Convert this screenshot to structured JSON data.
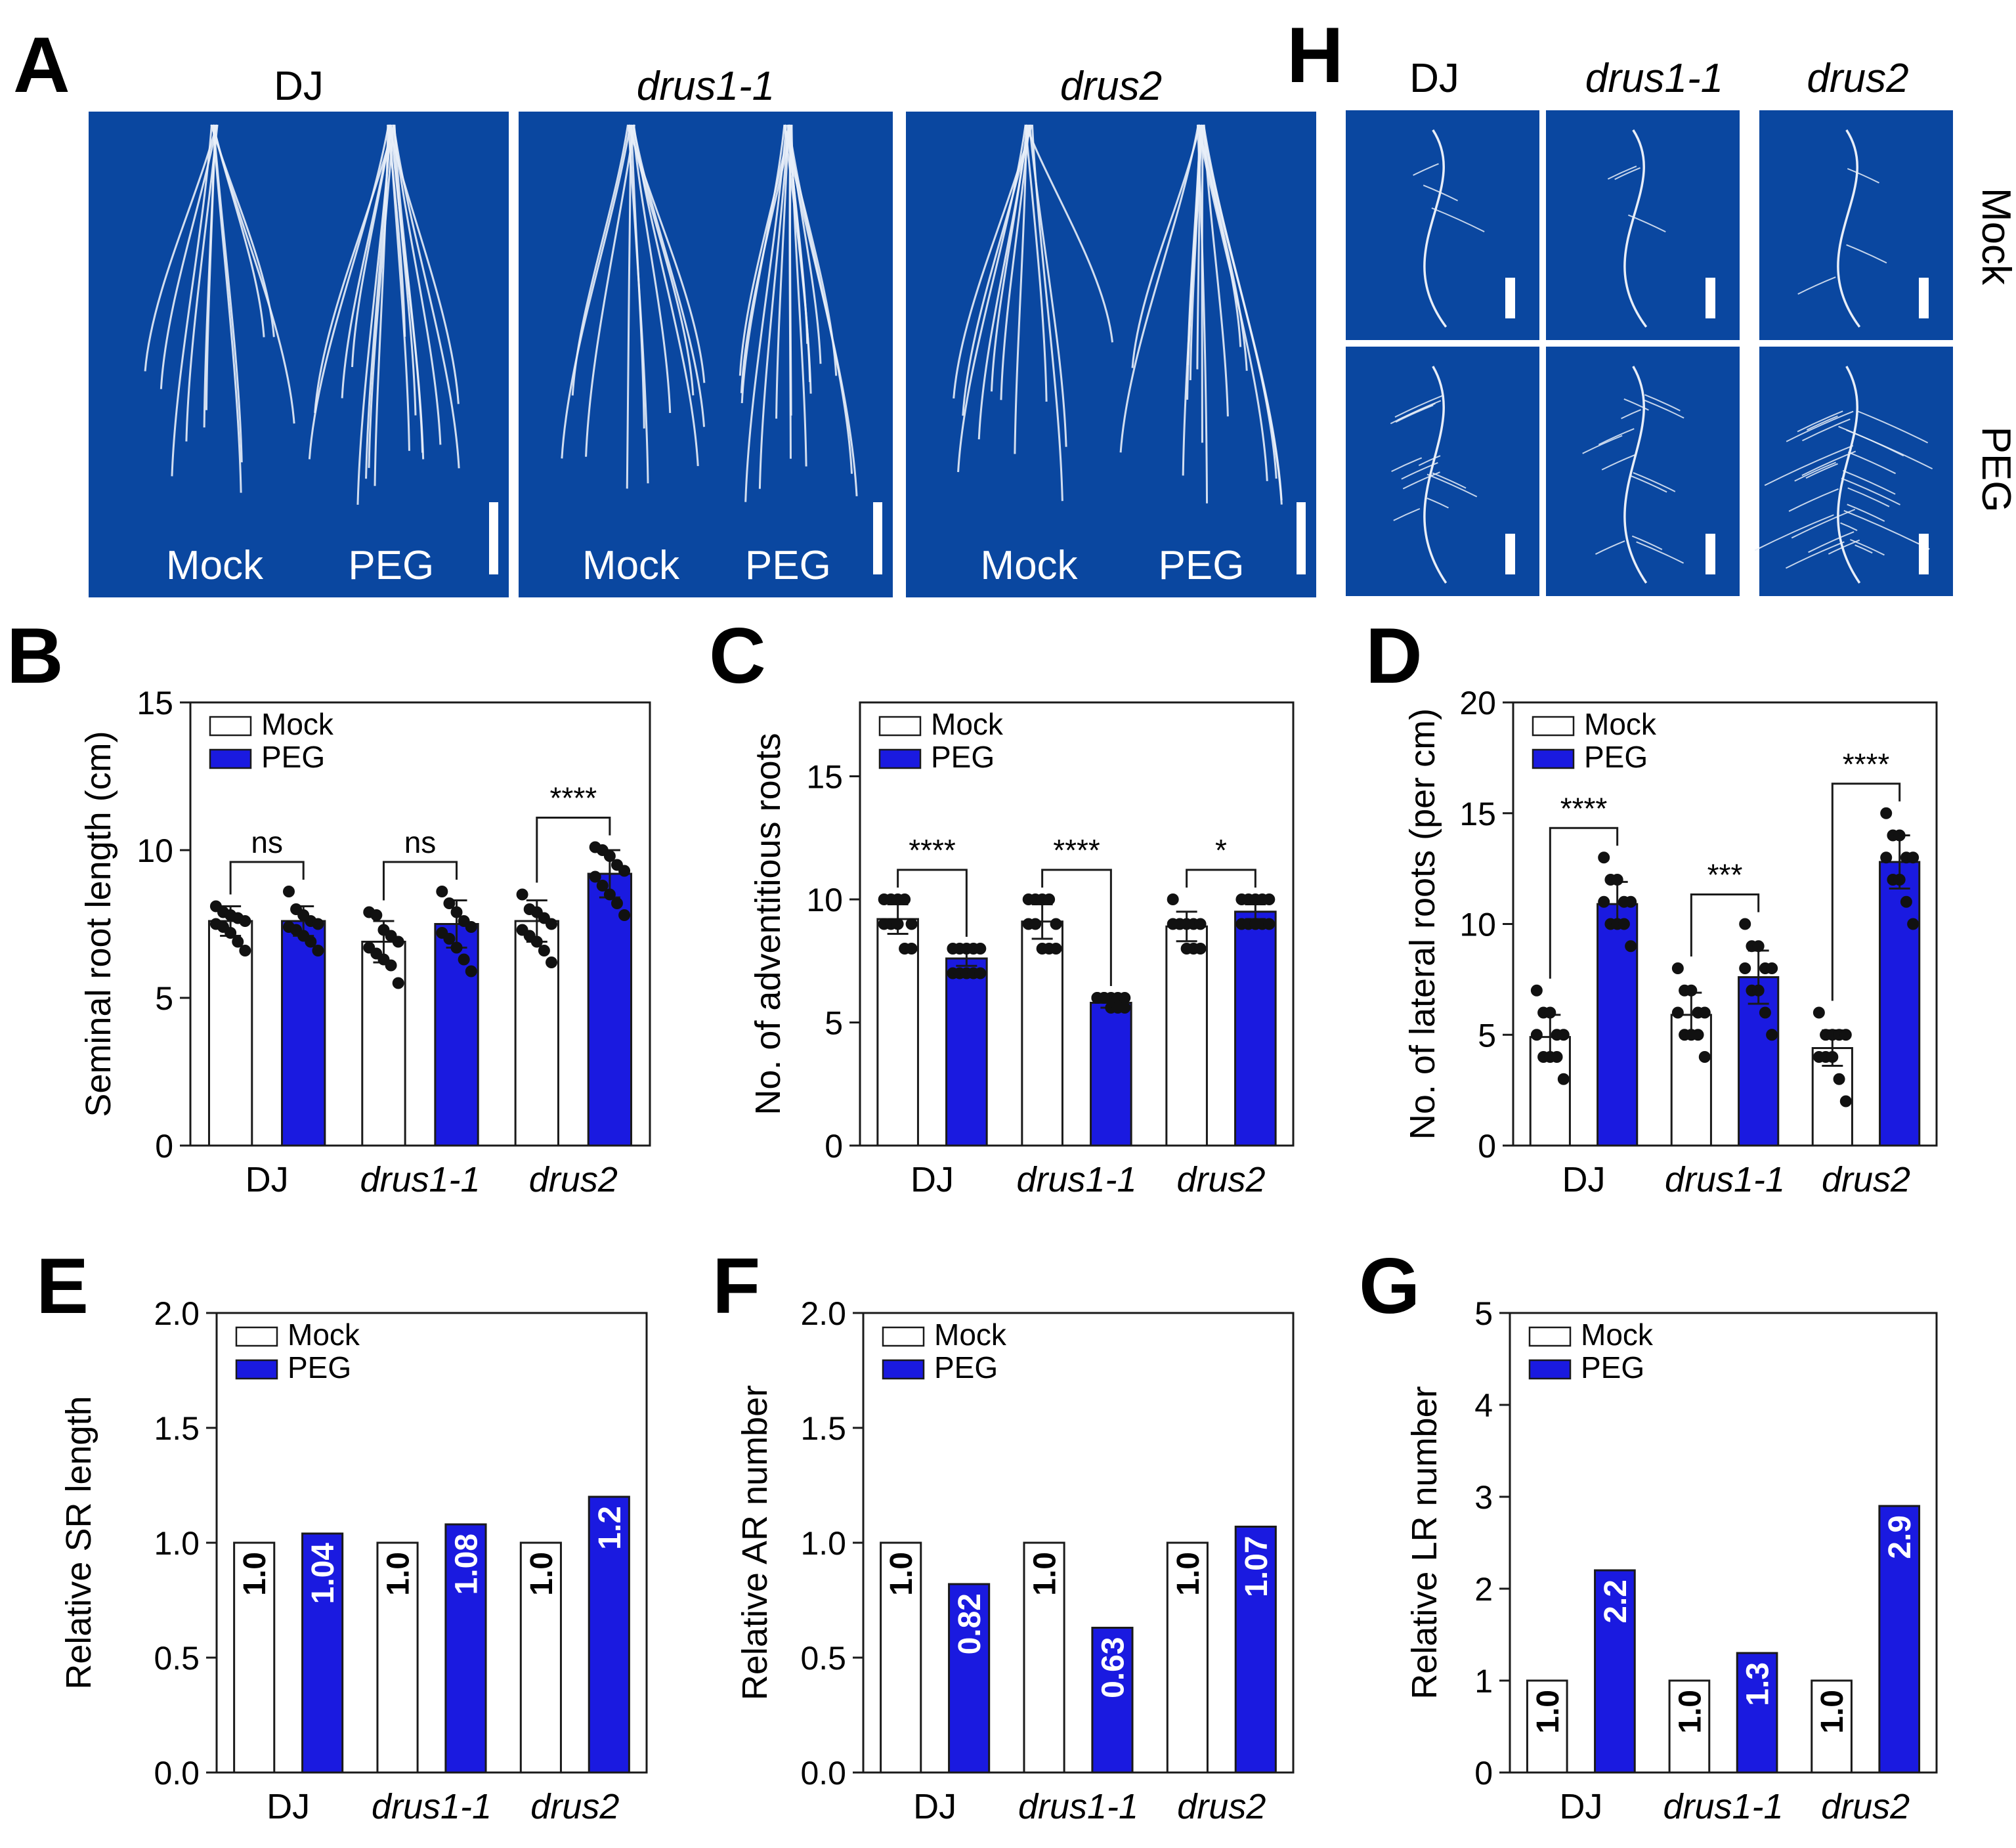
{
  "colors": {
    "photo_bg": "#0a47a0",
    "photo_bg_dark": "#083c8c",
    "root_line": "#e8eef8",
    "peg_bar": "#1a1ae0",
    "mock_bar": "#ffffff",
    "axis": "#1a1a1a",
    "dot": "#111111"
  },
  "panel_a": {
    "letter": "A",
    "genotypes": [
      "DJ",
      "drus1-1",
      "drus2"
    ],
    "conditions": [
      "Mock",
      "PEG"
    ]
  },
  "panel_h": {
    "letter": "H",
    "genotypes": [
      "DJ",
      "drus1-1",
      "drus2"
    ],
    "rows": [
      "Mock",
      "PEG"
    ]
  },
  "chart_data": [
    {
      "id": "B",
      "letter": "B",
      "type": "bar",
      "categories": [
        "DJ",
        "drus1-1",
        "drus2"
      ],
      "series": [
        {
          "name": "Mock",
          "values": [
            7.6,
            6.9,
            7.6
          ],
          "sd": [
            0.5,
            0.7,
            0.7
          ]
        },
        {
          "name": "PEG",
          "values": [
            7.6,
            7.5,
            9.2
          ],
          "sd": [
            0.5,
            0.8,
            0.8
          ]
        }
      ],
      "ylabel": "Seminal root length (cm)",
      "ylim": [
        0,
        15
      ],
      "yticks": [
        0,
        5,
        10,
        15
      ],
      "legend": [
        "Mock",
        "PEG"
      ],
      "significance": [
        "ns",
        "ns",
        "****"
      ],
      "points": {
        "Mock": [
          [
            8.1,
            7.9,
            7.8,
            7.7,
            7.6,
            7.5,
            7.4,
            7.2,
            6.9,
            6.6
          ],
          [
            7.9,
            7.8,
            7.3,
            7.1,
            6.9,
            6.7,
            6.5,
            6.3,
            6.1,
            5.5
          ],
          [
            8.5,
            8.0,
            7.9,
            7.7,
            7.5,
            7.3,
            7.1,
            6.9,
            6.6,
            6.2
          ]
        ],
        "PEG": [
          [
            8.6,
            8.0,
            7.8,
            7.6,
            7.5,
            7.4,
            7.3,
            7.1,
            6.9,
            6.6
          ],
          [
            8.6,
            8.2,
            7.9,
            7.6,
            7.4,
            7.2,
            7.0,
            6.7,
            6.3,
            5.9
          ],
          [
            10.1,
            10.0,
            9.8,
            9.5,
            9.3,
            9.1,
            8.8,
            8.5,
            8.2,
            7.8
          ]
        ]
      }
    },
    {
      "id": "C",
      "letter": "C",
      "type": "bar",
      "categories": [
        "DJ",
        "drus1-1",
        "drus2"
      ],
      "series": [
        {
          "name": "Mock",
          "values": [
            9.2,
            9.1,
            8.9
          ],
          "sd": [
            0.6,
            0.7,
            0.6
          ]
        },
        {
          "name": "PEG",
          "values": [
            7.6,
            5.8,
            9.5
          ],
          "sd": [
            0.3,
            0.2,
            0.3
          ]
        }
      ],
      "ylabel": "No. of adventitious roots",
      "ylim": [
        0,
        18
      ],
      "yticks": [
        0,
        5,
        10,
        15
      ],
      "legend": [
        "Mock",
        "PEG"
      ],
      "significance": [
        "****",
        "****",
        "*"
      ],
      "points": {
        "Mock": [
          [
            10,
            10,
            10,
            10,
            9,
            9,
            9,
            9,
            8,
            8
          ],
          [
            10,
            10,
            10,
            10,
            9,
            9,
            9,
            8,
            8,
            8
          ],
          [
            10,
            9,
            9,
            9,
            9,
            9,
            9,
            8,
            8,
            8
          ]
        ],
        "PEG": [
          [
            8,
            8,
            8,
            8,
            8,
            7,
            7,
            7,
            7,
            7
          ],
          [
            6,
            6,
            6,
            6,
            6,
            6,
            6,
            5.6,
            5.6,
            5.6
          ],
          [
            10,
            10,
            10,
            10,
            10,
            9,
            9,
            9,
            9,
            9
          ]
        ]
      }
    },
    {
      "id": "D",
      "letter": "D",
      "type": "bar",
      "categories": [
        "DJ",
        "drus1-1",
        "drus2"
      ],
      "series": [
        {
          "name": "Mock",
          "values": [
            4.9,
            5.9,
            4.4
          ],
          "sd": [
            1.0,
            1.0,
            0.8
          ]
        },
        {
          "name": "PEG",
          "values": [
            10.9,
            7.6,
            12.8
          ],
          "sd": [
            1.0,
            1.2,
            1.2
          ]
        }
      ],
      "ylabel": "No. of lateral roots (per cm)",
      "ylim": [
        0,
        20
      ],
      "yticks": [
        0,
        5,
        10,
        15,
        20
      ],
      "legend": [
        "Mock",
        "PEG"
      ],
      "significance": [
        "****",
        "***",
        "****"
      ],
      "points": {
        "Mock": [
          [
            7,
            6,
            6,
            5,
            5,
            5,
            4,
            4,
            4,
            3
          ],
          [
            8,
            7,
            7,
            6,
            6,
            6,
            5,
            5,
            5,
            4
          ],
          [
            6,
            5,
            5,
            5,
            5,
            4,
            4,
            4,
            3,
            2
          ]
        ],
        "PEG": [
          [
            13,
            12,
            12,
            11,
            11,
            11,
            10,
            10,
            10,
            9
          ],
          [
            10,
            9,
            9,
            8,
            8,
            8,
            7,
            7,
            6,
            5
          ],
          [
            15,
            14,
            14,
            13,
            13,
            13,
            12,
            12,
            11,
            10
          ]
        ]
      }
    },
    {
      "id": "E",
      "letter": "E",
      "type": "bar",
      "categories": [
        "DJ",
        "drus1-1",
        "drus2"
      ],
      "series": [
        {
          "name": "Mock",
          "values": [
            1.0,
            1.0,
            1.0
          ]
        },
        {
          "name": "PEG",
          "values": [
            1.04,
            1.08,
            1.2
          ]
        }
      ],
      "value_labels": {
        "Mock": [
          "1.0",
          "1.0",
          "1.0"
        ],
        "PEG": [
          "1.04",
          "1.08",
          "1.2"
        ]
      },
      "ylabel": "Relative SR length",
      "ylim": [
        0,
        2.0
      ],
      "yticks": [
        0,
        0.5,
        1.0,
        1.5,
        2.0
      ],
      "ytick_labels": [
        "0.0",
        "0.5",
        "1.0",
        "1.5",
        "2.0"
      ],
      "legend": [
        "Mock",
        "PEG"
      ]
    },
    {
      "id": "F",
      "letter": "F",
      "type": "bar",
      "categories": [
        "DJ",
        "drus1-1",
        "drus2"
      ],
      "series": [
        {
          "name": "Mock",
          "values": [
            1.0,
            1.0,
            1.0
          ]
        },
        {
          "name": "PEG",
          "values": [
            0.82,
            0.63,
            1.07
          ]
        }
      ],
      "value_labels": {
        "Mock": [
          "1.0",
          "1.0",
          "1.0"
        ],
        "PEG": [
          "0.82",
          "0.63",
          "1.07"
        ]
      },
      "ylabel": "Relative AR number",
      "ylim": [
        0,
        2.0
      ],
      "yticks": [
        0,
        0.5,
        1.0,
        1.5,
        2.0
      ],
      "ytick_labels": [
        "0.0",
        "0.5",
        "1.0",
        "1.5",
        "2.0"
      ],
      "legend": [
        "Mock",
        "PEG"
      ]
    },
    {
      "id": "G",
      "letter": "G",
      "type": "bar",
      "categories": [
        "DJ",
        "drus1-1",
        "drus2"
      ],
      "series": [
        {
          "name": "Mock",
          "values": [
            1.0,
            1.0,
            1.0
          ]
        },
        {
          "name": "PEG",
          "values": [
            2.2,
            1.3,
            2.9
          ]
        }
      ],
      "value_labels": {
        "Mock": [
          "1.0",
          "1.0",
          "1.0"
        ],
        "PEG": [
          "2.2",
          "1.3",
          "2.9"
        ]
      },
      "ylabel": "Relative LR number",
      "ylim": [
        0,
        5
      ],
      "yticks": [
        0,
        1,
        2,
        3,
        4,
        5
      ],
      "ytick_labels": [
        "0",
        "1",
        "2",
        "3",
        "4",
        "5"
      ],
      "legend": [
        "Mock",
        "PEG"
      ]
    }
  ]
}
